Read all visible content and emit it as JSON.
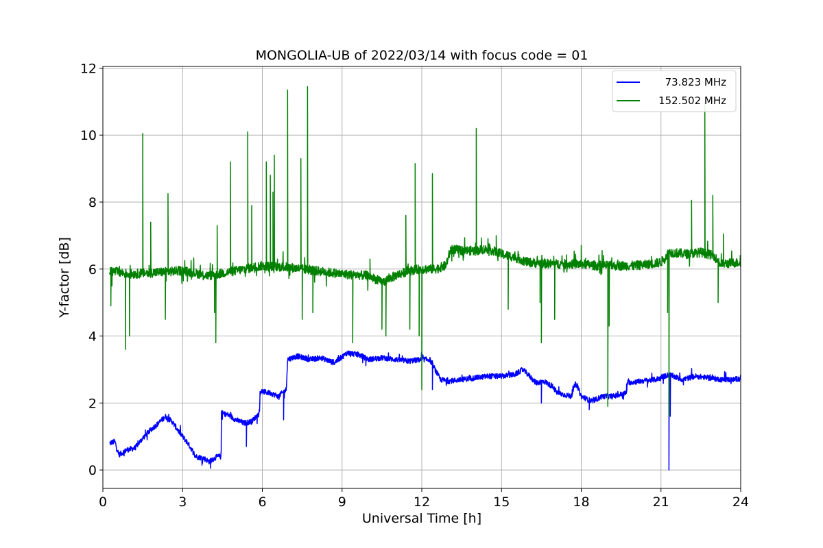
{
  "chart_data": {
    "type": "line",
    "title": "MONGOLIA-UB of 2022/03/14 with focus code = 01",
    "xlabel": "Universal Time [h]",
    "ylabel": "Y-factor [dB]",
    "xlim": [
      0,
      24
    ],
    "ylim": [
      -0.55,
      12.05
    ],
    "xticks": [
      0,
      3,
      6,
      9,
      12,
      15,
      18,
      21,
      24
    ],
    "yticks": [
      0,
      2,
      4,
      6,
      8,
      10,
      12
    ],
    "grid": true,
    "legend_position": "upper-right",
    "series": [
      {
        "name": "73.823 MHz",
        "color": "#0000ff",
        "noise": 0.08,
        "points": [
          [
            0.25,
            0.8
          ],
          [
            0.45,
            0.85
          ],
          [
            0.6,
            0.45
          ],
          [
            0.9,
            0.6
          ],
          [
            1.2,
            0.65
          ],
          [
            1.5,
            0.95
          ],
          [
            1.8,
            1.2
          ],
          [
            2.1,
            1.4
          ],
          [
            2.35,
            1.6
          ],
          [
            2.6,
            1.45
          ],
          [
            2.9,
            1.1
          ],
          [
            3.2,
            0.8
          ],
          [
            3.5,
            0.4
          ],
          [
            3.8,
            0.35
          ],
          [
            4.0,
            0.25
          ],
          [
            4.3,
            0.4
          ],
          [
            4.45,
            0.4
          ],
          [
            4.46,
            1.7
          ],
          [
            4.7,
            1.65
          ],
          [
            5.0,
            1.5
          ],
          [
            5.3,
            1.4
          ],
          [
            5.6,
            1.45
          ],
          [
            5.9,
            1.7
          ],
          [
            5.91,
            2.35
          ],
          [
            6.3,
            2.3
          ],
          [
            6.6,
            2.2
          ],
          [
            6.9,
            2.4
          ],
          [
            6.95,
            3.3
          ],
          [
            7.3,
            3.4
          ],
          [
            7.8,
            3.3
          ],
          [
            8.2,
            3.35
          ],
          [
            8.7,
            3.2
          ],
          [
            9.2,
            3.5
          ],
          [
            9.6,
            3.45
          ],
          [
            10.0,
            3.3
          ],
          [
            10.5,
            3.35
          ],
          [
            11.0,
            3.3
          ],
          [
            11.5,
            3.25
          ],
          [
            12.0,
            3.3
          ],
          [
            12.3,
            3.3
          ],
          [
            12.5,
            3.0
          ],
          [
            12.7,
            2.7
          ],
          [
            13.0,
            2.65
          ],
          [
            13.5,
            2.7
          ],
          [
            14.0,
            2.75
          ],
          [
            14.5,
            2.8
          ],
          [
            15.0,
            2.8
          ],
          [
            15.5,
            2.85
          ],
          [
            15.8,
            3.0
          ],
          [
            16.0,
            2.85
          ],
          [
            16.3,
            2.6
          ],
          [
            16.6,
            2.65
          ],
          [
            16.9,
            2.5
          ],
          [
            17.1,
            2.3
          ],
          [
            17.6,
            2.2
          ],
          [
            17.8,
            2.6
          ],
          [
            18.0,
            2.2
          ],
          [
            18.4,
            2.05
          ],
          [
            18.8,
            2.2
          ],
          [
            19.2,
            2.2
          ],
          [
            19.7,
            2.3
          ],
          [
            19.71,
            2.6
          ],
          [
            20.2,
            2.65
          ],
          [
            20.8,
            2.7
          ],
          [
            21.3,
            2.85
          ],
          [
            21.8,
            2.7
          ],
          [
            22.3,
            2.8
          ],
          [
            22.8,
            2.75
          ],
          [
            23.3,
            2.7
          ],
          [
            23.8,
            2.7
          ],
          [
            24.0,
            2.75
          ]
        ],
        "spikes": [
          [
            6.8,
            1.5
          ],
          [
            4.05,
            0.05
          ],
          [
            5.4,
            0.7
          ],
          [
            16.5,
            2.0
          ],
          [
            21.3,
            0.0
          ],
          [
            21.35,
            1.6
          ],
          [
            18.3,
            1.8
          ],
          [
            12.4,
            2.4
          ],
          [
            1.6,
            1.2
          ]
        ]
      },
      {
        "name": "152.502 MHz",
        "color": "#008000",
        "noise": 0.14,
        "points": [
          [
            0.25,
            5.95
          ],
          [
            1.0,
            5.85
          ],
          [
            2.0,
            5.9
          ],
          [
            3.0,
            5.95
          ],
          [
            4.0,
            5.8
          ],
          [
            5.0,
            5.95
          ],
          [
            6.0,
            6.1
          ],
          [
            7.0,
            6.05
          ],
          [
            8.0,
            5.95
          ],
          [
            9.0,
            5.85
          ],
          [
            10.0,
            5.8
          ],
          [
            10.5,
            5.6
          ],
          [
            11.0,
            5.8
          ],
          [
            11.5,
            5.95
          ],
          [
            12.0,
            6.0
          ],
          [
            12.5,
            6.0
          ],
          [
            12.9,
            6.1
          ],
          [
            13.1,
            6.6
          ],
          [
            13.5,
            6.55
          ],
          [
            14.0,
            6.55
          ],
          [
            14.5,
            6.6
          ],
          [
            15.0,
            6.45
          ],
          [
            15.5,
            6.35
          ],
          [
            16.0,
            6.2
          ],
          [
            17.0,
            6.15
          ],
          [
            18.0,
            6.15
          ],
          [
            18.6,
            6.1
          ],
          [
            19.2,
            6.1
          ],
          [
            20.0,
            6.1
          ],
          [
            20.6,
            6.15
          ],
          [
            21.0,
            6.2
          ],
          [
            21.3,
            6.5
          ],
          [
            22.0,
            6.45
          ],
          [
            22.5,
            6.5
          ],
          [
            23.0,
            6.4
          ],
          [
            23.2,
            6.15
          ],
          [
            24.0,
            6.2
          ]
        ],
        "spikes": [
          [
            0.85,
            3.6
          ],
          [
            1.0,
            4.0
          ],
          [
            0.3,
            4.9
          ],
          [
            1.5,
            10.05
          ],
          [
            1.8,
            7.4
          ],
          [
            2.35,
            4.5
          ],
          [
            2.45,
            8.25
          ],
          [
            4.2,
            4.7
          ],
          [
            4.25,
            3.8
          ],
          [
            4.3,
            7.3
          ],
          [
            4.8,
            9.2
          ],
          [
            5.45,
            10.1
          ],
          [
            5.6,
            7.9
          ],
          [
            6.15,
            9.2
          ],
          [
            6.3,
            8.8
          ],
          [
            6.4,
            8.3
          ],
          [
            6.45,
            9.4
          ],
          [
            6.95,
            11.35
          ],
          [
            7.45,
            9.3
          ],
          [
            7.5,
            4.5
          ],
          [
            7.7,
            11.45
          ],
          [
            7.9,
            4.7
          ],
          [
            9.4,
            3.8
          ],
          [
            10.05,
            6.3
          ],
          [
            10.5,
            4.2
          ],
          [
            10.65,
            4.0
          ],
          [
            11.4,
            7.6
          ],
          [
            11.55,
            4.2
          ],
          [
            11.75,
            9.15
          ],
          [
            11.9,
            4.0
          ],
          [
            12.0,
            2.4
          ],
          [
            12.4,
            8.85
          ],
          [
            14.05,
            10.2
          ],
          [
            14.8,
            7.0
          ],
          [
            15.25,
            4.8
          ],
          [
            16.5,
            3.8
          ],
          [
            16.45,
            5.0
          ],
          [
            17.0,
            4.5
          ],
          [
            18.0,
            6.7
          ],
          [
            19.0,
            1.9
          ],
          [
            19.05,
            4.3
          ],
          [
            21.3,
            1.6
          ],
          [
            21.25,
            4.7
          ],
          [
            22.15,
            8.05
          ],
          [
            22.65,
            11.0
          ],
          [
            22.95,
            8.2
          ],
          [
            23.15,
            5.0
          ],
          [
            23.35,
            7.05
          ]
        ]
      }
    ]
  }
}
